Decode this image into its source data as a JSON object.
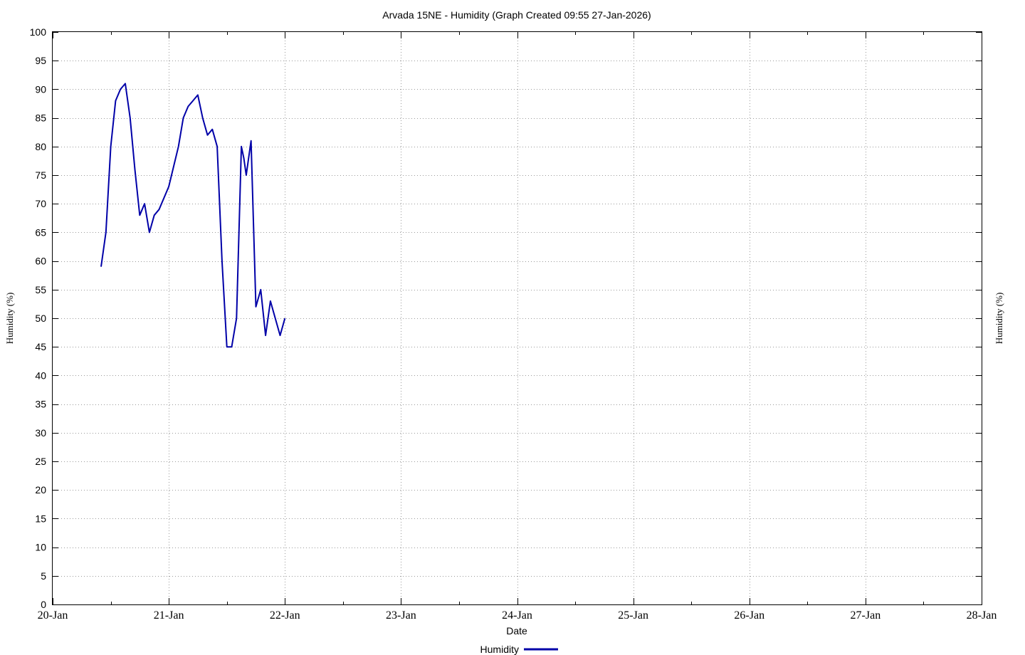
{
  "chart_data": {
    "type": "line",
    "title": "Arvada 15NE - Humidity (Graph Created 09:55 27-Jan-2026)",
    "xlabel": "Date",
    "ylabel": "Humidity (%)",
    "ylabel_right": "Humidity (%)",
    "ylim": [
      0,
      100
    ],
    "yticks": [
      0,
      5,
      10,
      15,
      20,
      25,
      30,
      35,
      40,
      45,
      50,
      55,
      60,
      65,
      70,
      75,
      80,
      85,
      90,
      95,
      100
    ],
    "xlim": [
      "2026-01-20 00:00",
      "2026-01-28 00:00"
    ],
    "xticks": [
      "20-Jan",
      "21-Jan",
      "22-Jan",
      "23-Jan",
      "24-Jan",
      "25-Jan",
      "26-Jan",
      "27-Jan",
      "28-Jan"
    ],
    "grid": true,
    "legend_position": "bottom-center",
    "series": [
      {
        "name": "Humidity",
        "color": "#0000a8",
        "points": [
          [
            "2026-01-20 10:00",
            59
          ],
          [
            "2026-01-20 11:00",
            65
          ],
          [
            "2026-01-20 12:00",
            80
          ],
          [
            "2026-01-20 13:00",
            88
          ],
          [
            "2026-01-20 14:00",
            90
          ],
          [
            "2026-01-20 15:00",
            91
          ],
          [
            "2026-01-20 16:00",
            85
          ],
          [
            "2026-01-20 17:00",
            76
          ],
          [
            "2026-01-20 18:00",
            68
          ],
          [
            "2026-01-20 19:00",
            70
          ],
          [
            "2026-01-20 20:00",
            65
          ],
          [
            "2026-01-20 21:00",
            68
          ],
          [
            "2026-01-20 22:00",
            69
          ],
          [
            "2026-01-21 00:00",
            73
          ],
          [
            "2026-01-21 02:00",
            80
          ],
          [
            "2026-01-21 03:00",
            85
          ],
          [
            "2026-01-21 04:00",
            87
          ],
          [
            "2026-01-21 05:00",
            88
          ],
          [
            "2026-01-21 06:00",
            89
          ],
          [
            "2026-01-21 07:00",
            85
          ],
          [
            "2026-01-21 08:00",
            82
          ],
          [
            "2026-01-21 09:00",
            83
          ],
          [
            "2026-01-21 10:00",
            80
          ],
          [
            "2026-01-21 11:00",
            60
          ],
          [
            "2026-01-21 12:00",
            45
          ],
          [
            "2026-01-21 13:00",
            45
          ],
          [
            "2026-01-21 14:00",
            50
          ],
          [
            "2026-01-21 15:00",
            80
          ],
          [
            "2026-01-21 16:00",
            75
          ],
          [
            "2026-01-21 17:00",
            81
          ],
          [
            "2026-01-21 18:00",
            52
          ],
          [
            "2026-01-21 19:00",
            55
          ],
          [
            "2026-01-21 20:00",
            47
          ],
          [
            "2026-01-21 21:00",
            53
          ],
          [
            "2026-01-21 22:00",
            50
          ],
          [
            "2026-01-21 23:00",
            47
          ],
          [
            "2026-01-22 00:00",
            50
          ],
          [
            "2026-01-21 15:30",
            78
          ]
        ],
        "note": ""
      }
    ]
  }
}
